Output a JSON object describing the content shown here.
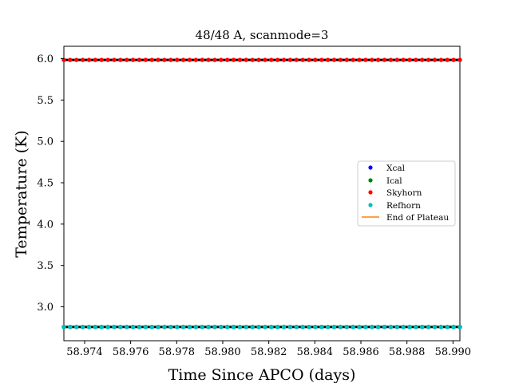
{
  "chart_data": {
    "type": "scatter",
    "title": "48/48 A, scanmode=3",
    "xlabel": "Time Since APCO (days)",
    "ylabel": "Temperature (K)",
    "xlim": [
      58.9731,
      58.9903
    ],
    "ylim": [
      2.59,
      6.15
    ],
    "xticks": [
      "58.974",
      "58.976",
      "58.978",
      "58.980",
      "58.982",
      "58.984",
      "58.986",
      "58.988",
      "58.990"
    ],
    "yticks": [
      "3.0",
      "3.5",
      "4.0",
      "4.5",
      "5.0",
      "5.5",
      "6.0"
    ],
    "grid": false,
    "legend_position": "center-right",
    "x_start": 58.9731,
    "x_end": 58.9903,
    "n_points": 64,
    "series": [
      {
        "name": "Xcal",
        "color": "#0000ff",
        "marker": "dot",
        "value": 2.757
      },
      {
        "name": "Ical",
        "color": "#008000",
        "marker": "dot",
        "value": 2.757
      },
      {
        "name": "Skyhorn",
        "color": "#ff0000",
        "marker": "dot",
        "value": 5.985
      },
      {
        "name": "Refhorn",
        "color": "#00bfbf",
        "marker": "dot",
        "value": 2.757
      }
    ],
    "reference_series": {
      "name": "End of Plateau",
      "color": "#ff7f0e",
      "marker": "line"
    },
    "dark_line_levels": [
      5.985,
      2.757
    ]
  }
}
